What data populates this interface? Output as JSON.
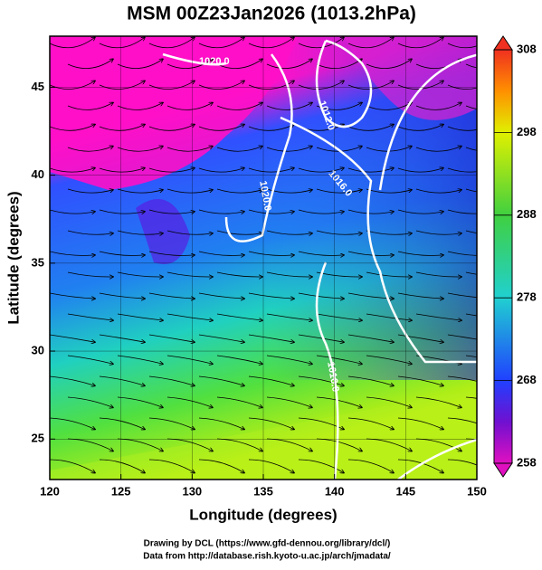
{
  "title": "MSM 00Z23Jan2026 (1013.2hPa)",
  "x_axis": {
    "label": "Longitude (degrees)",
    "lim": [
      120,
      150
    ],
    "ticks": [
      120,
      125,
      130,
      135,
      140,
      145,
      150
    ]
  },
  "y_axis": {
    "label": "Latitude  (degrees)",
    "lim": [
      22.7,
      47.9
    ],
    "ticks": [
      25,
      30,
      35,
      40,
      45
    ]
  },
  "colorbar": {
    "lim": [
      258,
      308
    ],
    "ticks": [
      258,
      268,
      278,
      288,
      298,
      308
    ]
  },
  "contour_labels": [
    "1020.0",
    "1012.0",
    "1016.0",
    "1020.0",
    "1016.0"
  ],
  "credits": [
    "Drawing by DCL (https://www.gfd-dennou.org/library/dcl/)",
    "Data from http://database.rish.kyoto-u.ac.jp/arch/jmadata/"
  ]
}
